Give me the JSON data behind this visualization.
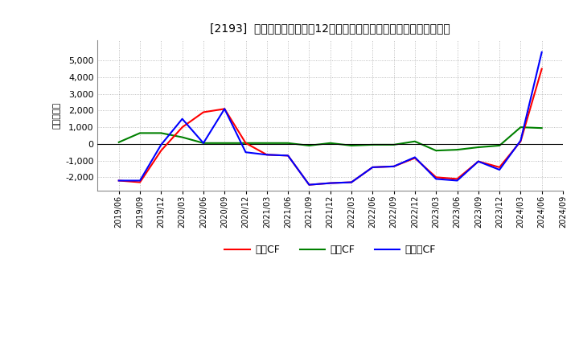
{
  "title": "[2193]  キャッシュフローの12か月移動合計の対前年同期増減額の推移",
  "ylabel": "（百万円）",
  "bg_color": "#ffffff",
  "plot_bg_color": "#ffffff",
  "grid_color": "#999999",
  "ylim": [
    -2800,
    6200
  ],
  "yticks": [
    -2000,
    -1000,
    0,
    1000,
    2000,
    3000,
    4000,
    5000
  ],
  "legend_labels": [
    "営業CF",
    "投資CF",
    "フリーCF"
  ],
  "legend_colors": [
    "#ff0000",
    "#008000",
    "#0000ff"
  ],
  "x_labels": [
    "2019/06",
    "2019/09",
    "2019/12",
    "2020/03",
    "2020/06",
    "2020/09",
    "2020/12",
    "2021/03",
    "2021/06",
    "2021/09",
    "2021/12",
    "2022/03",
    "2022/06",
    "2022/09",
    "2022/12",
    "2023/03",
    "2023/06",
    "2023/09",
    "2023/12",
    "2024/03",
    "2024/06",
    "2024/09"
  ],
  "eigyo_cf": [
    -2200,
    -2300,
    -400,
    1000,
    1900,
    2100,
    50,
    -650,
    -700,
    -2450,
    -2350,
    -2300,
    -1400,
    -1350,
    -850,
    -2000,
    -2100,
    -1050,
    -1400,
    150,
    4500,
    null
  ],
  "toshi_cf": [
    100,
    650,
    650,
    400,
    50,
    50,
    50,
    50,
    50,
    -100,
    50,
    -100,
    -50,
    -50,
    150,
    -400,
    -350,
    -200,
    -100,
    1000,
    950,
    null
  ],
  "free_cf": [
    -2200,
    -2200,
    -50,
    1500,
    50,
    2100,
    -500,
    -650,
    -700,
    -2450,
    -2350,
    -2300,
    -1400,
    -1350,
    -800,
    -2100,
    -2200,
    -1050,
    -1550,
    200,
    5500,
    null
  ]
}
